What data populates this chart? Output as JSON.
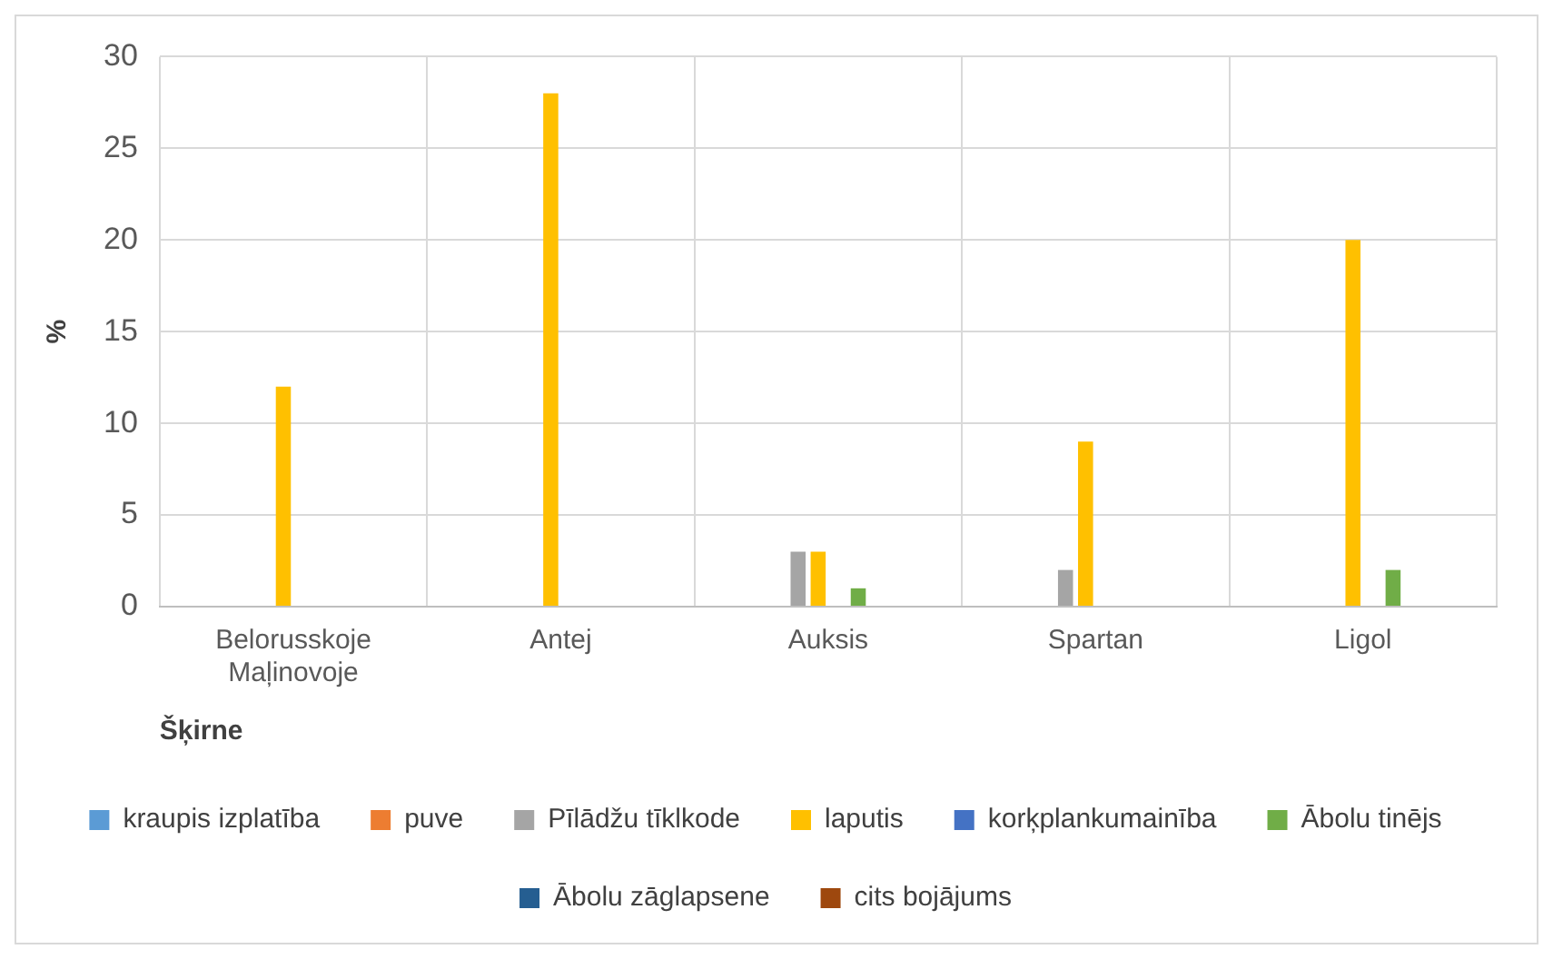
{
  "chart_data": {
    "type": "bar",
    "xlabel": "Šķirne",
    "ylabel": "%",
    "categories": [
      "Belorusskoje Maļinovoje",
      "Antej",
      "Auksis",
      "Spartan",
      "Ligol"
    ],
    "series": [
      {
        "name": "kraupis izplatība",
        "color": "#5b9bd5",
        "values": [
          0,
          0,
          0,
          0,
          0
        ]
      },
      {
        "name": "puve",
        "color": "#ed7d31",
        "values": [
          0,
          0,
          0,
          0,
          0
        ]
      },
      {
        "name": "Pīlādžu tīklkode",
        "color": "#a5a5a5",
        "values": [
          0,
          0,
          3,
          2,
          0
        ]
      },
      {
        "name": "laputis",
        "color": "#ffc000",
        "values": [
          12,
          28,
          3,
          9,
          20
        ]
      },
      {
        "name": "korķplankumainība",
        "color": "#4472c4",
        "values": [
          0,
          0,
          0,
          0,
          0
        ]
      },
      {
        "name": "Ābolu tinējs",
        "color": "#70ad47",
        "values": [
          0,
          0,
          1,
          0,
          2
        ]
      },
      {
        "name": "Ābolu zāglapsene",
        "color": "#255e91",
        "values": [
          0,
          0,
          0,
          0,
          0
        ]
      },
      {
        "name": "cits bojājums",
        "color": "#9e480e",
        "values": [
          0,
          0,
          0,
          0,
          0
        ]
      }
    ],
    "ylim": [
      0,
      30
    ],
    "yticks": [
      0,
      5,
      10,
      15,
      20,
      25,
      30
    ],
    "grid": true,
    "legend": "bottom"
  }
}
